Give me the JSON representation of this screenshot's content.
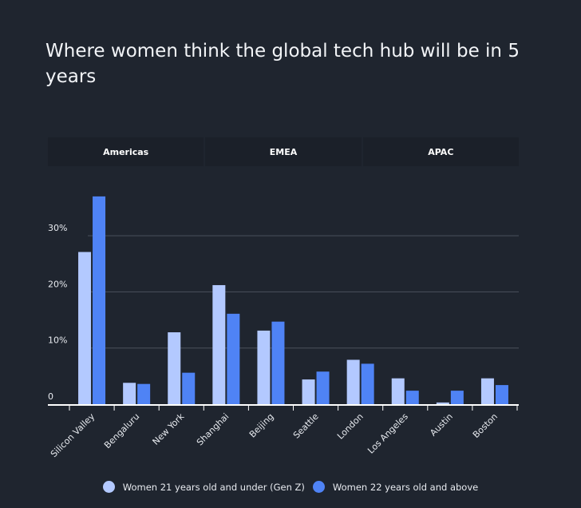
{
  "chart_data": {
    "type": "bar",
    "title": "Where women think the global tech hub will be in 5 years",
    "tabs": [
      "Americas",
      "EMEA",
      "APAC"
    ],
    "categories": [
      "Silicon Valley",
      "Bengaluru",
      "New York",
      "Shanghai",
      "Beijing",
      "Seattle",
      "London",
      "Los Angeles",
      "Austin",
      "Boston"
    ],
    "series": [
      {
        "name": "Women 21 years old and under (Gen Z)",
        "color": "#b3c9ff",
        "values": [
          27.1,
          3.8,
          12.8,
          21.2,
          13.1,
          4.4,
          7.9,
          4.6,
          0.3,
          4.6
        ]
      },
      {
        "name": "Women 22 years old and above",
        "color": "#4f83f5",
        "values": [
          37.0,
          3.6,
          5.6,
          16.1,
          14.7,
          5.8,
          7.2,
          2.4,
          2.4,
          3.4
        ]
      }
    ],
    "yticks": [
      {
        "value": 0,
        "label": "0"
      },
      {
        "value": 10,
        "label": "10%"
      },
      {
        "value": 20,
        "label": "20%"
      },
      {
        "value": 30,
        "label": "30%"
      }
    ],
    "ylim": [
      0,
      40
    ],
    "grid": true,
    "legend": "bottom"
  }
}
